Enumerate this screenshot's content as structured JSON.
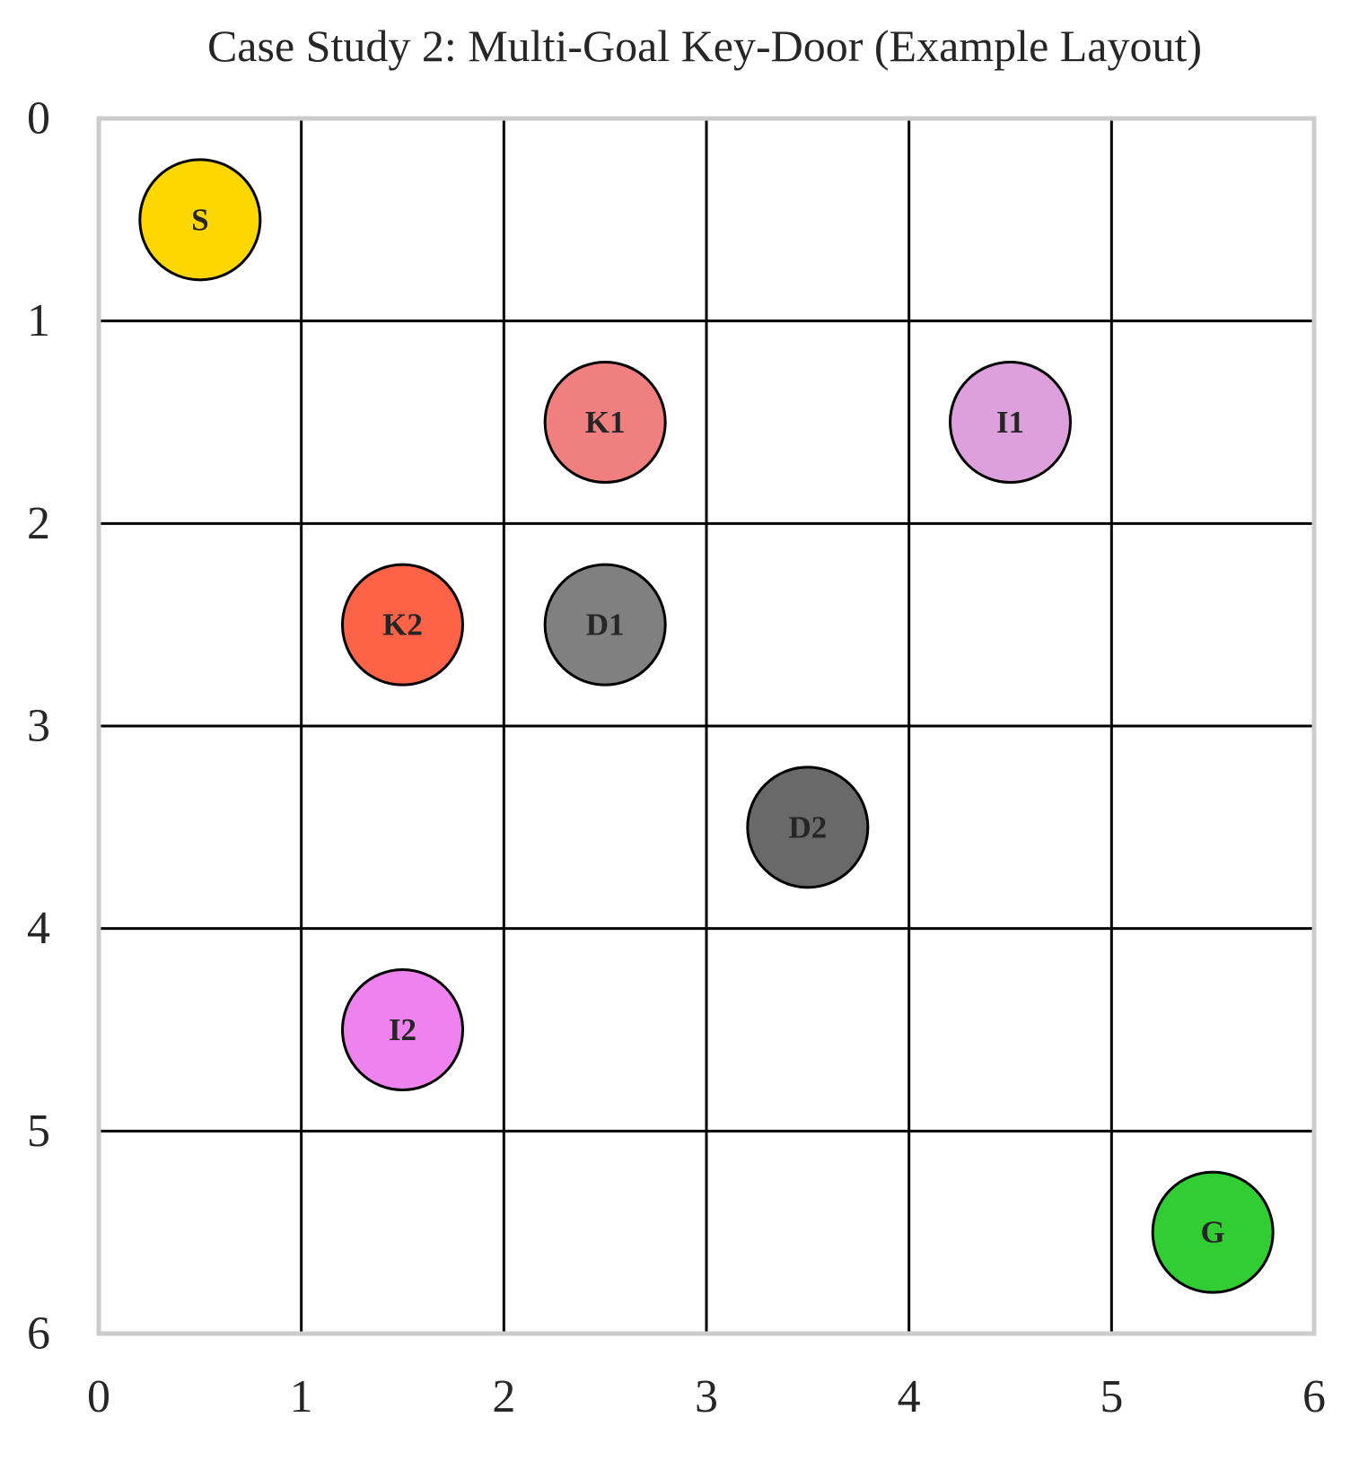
{
  "title": "Case Study 2: Multi-Goal Key-Door (Example Layout)",
  "grid": {
    "rows": 6,
    "cols": 6,
    "x_ticks": [
      "0",
      "1",
      "2",
      "3",
      "4",
      "5",
      "6"
    ],
    "y_ticks": [
      "0",
      "1",
      "2",
      "3",
      "4",
      "5",
      "6"
    ],
    "colors": {
      "grid_line": "#000000",
      "frame": "#cccccc",
      "marker_edge": "#000000",
      "text": "#262626"
    }
  },
  "markers": [
    {
      "label": "S",
      "col": 0,
      "row": 0,
      "color": "#ffd700"
    },
    {
      "label": "K1",
      "col": 2,
      "row": 1,
      "color": "#f08080"
    },
    {
      "label": "I1",
      "col": 4,
      "row": 1,
      "color": "#dda0dd"
    },
    {
      "label": "K2",
      "col": 1,
      "row": 2,
      "color": "#ff6347"
    },
    {
      "label": "D1",
      "col": 2,
      "row": 2,
      "color": "#808080"
    },
    {
      "label": "D2",
      "col": 3,
      "row": 3,
      "color": "#696969"
    },
    {
      "label": "I2",
      "col": 1,
      "row": 4,
      "color": "#ee82ee"
    },
    {
      "label": "G",
      "col": 5,
      "row": 5,
      "color": "#32cd32"
    }
  ]
}
